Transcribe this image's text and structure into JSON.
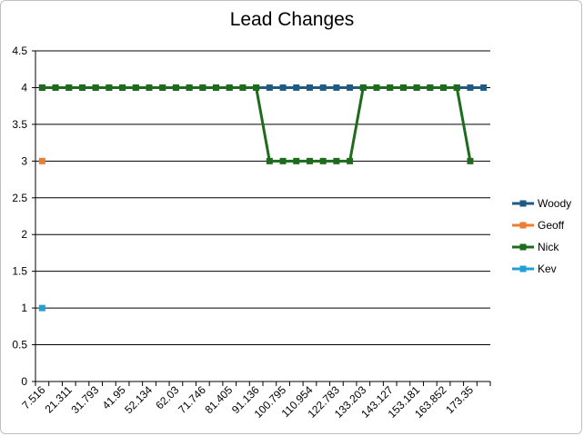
{
  "chart_data": {
    "type": "line",
    "title": "Lead Changes",
    "xlabel": "",
    "ylabel": "",
    "ylim": [
      0,
      4.5
    ],
    "y_ticks": [
      0,
      0.5,
      1,
      1.5,
      2,
      2.5,
      3,
      3.5,
      4,
      4.5
    ],
    "y_tick_labels": [
      "0",
      "0.5",
      "1",
      "1.5",
      "2",
      "2.5",
      "3",
      "3.5",
      "4",
      "4.5"
    ],
    "grid": true,
    "legend_position": "right",
    "categories": [
      "7.516",
      "",
      "21.311",
      "",
      "31.793",
      "",
      "41.95",
      "",
      "52.134",
      "",
      "62.03",
      "",
      "71.746",
      "",
      "81.405",
      "",
      "91.136",
      "",
      "100.795",
      "",
      "110.954",
      "",
      "122.783",
      "",
      "133.203",
      "",
      "143.127",
      "",
      "153.181",
      "",
      "163.852",
      "",
      "173.35",
      ""
    ],
    "series": [
      {
        "name": "Woody",
        "color": "#1f5a82",
        "values": [
          4,
          4,
          4,
          4,
          4,
          4,
          4,
          4,
          4,
          4,
          4,
          4,
          4,
          4,
          4,
          4,
          4,
          4,
          4,
          4,
          4,
          4,
          4,
          4,
          4,
          4,
          4,
          4,
          4,
          4,
          4,
          4,
          4,
          4
        ]
      },
      {
        "name": "Geoff",
        "color": "#ed7d31",
        "values": [
          3,
          null,
          null,
          null,
          null,
          null,
          null,
          null,
          null,
          null,
          null,
          null,
          null,
          null,
          null,
          null,
          null,
          null,
          null,
          null,
          null,
          null,
          null,
          null,
          null,
          null,
          null,
          null,
          null,
          null,
          null,
          null,
          null,
          null
        ]
      },
      {
        "name": "Nick",
        "color": "#1e6b1e",
        "values": [
          4,
          4,
          4,
          4,
          4,
          4,
          4,
          4,
          4,
          4,
          4,
          4,
          4,
          4,
          4,
          4,
          4,
          3,
          3,
          3,
          3,
          3,
          3,
          3,
          4,
          4,
          4,
          4,
          4,
          4,
          4,
          4,
          3,
          null
        ]
      },
      {
        "name": "Kev",
        "color": "#1fa0d8",
        "values": [
          1,
          null,
          null,
          null,
          null,
          null,
          null,
          null,
          null,
          null,
          null,
          null,
          null,
          null,
          null,
          null,
          null,
          null,
          null,
          null,
          null,
          null,
          null,
          null,
          null,
          null,
          null,
          null,
          null,
          null,
          null,
          null,
          null,
          null
        ]
      }
    ]
  }
}
